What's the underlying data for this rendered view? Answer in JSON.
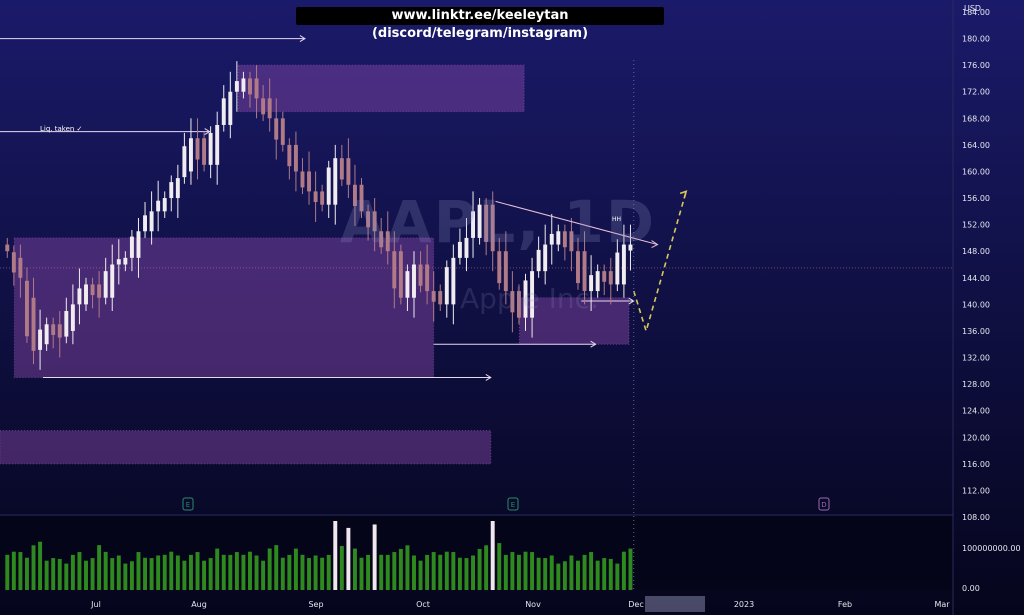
{
  "banner": "www.linktr.ee/keeleytan (discord/telegram/instagram)",
  "watermark": {
    "symbol": "AAPL, 1D",
    "company": "Apple Inc."
  },
  "currency": "USD",
  "annotations": {
    "liquidity": "Liq. taken ✓",
    "high_tag": "HH"
  },
  "events": [
    {
      "label": "E",
      "color": "#2a8a6a",
      "month_pos": "early Aug"
    },
    {
      "label": "E",
      "color": "#2a8a6a",
      "month_pos": "late Oct"
    },
    {
      "label": "D",
      "color": "#9a6ab0",
      "month_pos": "Feb"
    }
  ],
  "colors": {
    "bg_top": "#1a1a6a",
    "bg_bottom": "#05051c",
    "up": "#f0ecf0",
    "down": "#b07a86",
    "zone": "#8a4aa8",
    "vol_up": "#2e8a1e",
    "vol_down": "#2e8a1e",
    "projection": "#d8c85a"
  },
  "chart_data": {
    "type": "candlestick",
    "y_axis": {
      "min": 108,
      "max": 184,
      "step": 4,
      "ticks": [
        "184.00",
        "180.00",
        "176.00",
        "172.00",
        "168.00",
        "164.00",
        "160.00",
        "156.00",
        "152.00",
        "148.00",
        "144.00",
        "140.00",
        "136.00",
        "132.00",
        "128.00",
        "124.00",
        "120.00",
        "116.00",
        "112.00",
        "108.00"
      ]
    },
    "volume_axis": {
      "ticks": [
        "100000000.00",
        "0.00"
      ]
    },
    "x_axis": {
      "labels": [
        "Jul",
        "Aug",
        "Sep",
        "Oct",
        "Nov",
        "Dec",
        "2023",
        "Feb",
        "Mar"
      ]
    },
    "ohlc_anchors": [
      [
        149,
        151,
        145,
        148
      ],
      [
        147,
        149,
        141,
        144
      ],
      [
        141,
        143,
        131,
        133
      ],
      [
        134,
        138,
        132,
        137
      ],
      [
        137,
        140,
        133,
        135
      ],
      [
        136,
        141,
        135,
        140
      ],
      [
        140,
        144,
        139,
        143
      ],
      [
        143,
        146,
        139,
        141
      ],
      [
        141,
        147,
        140,
        146
      ],
      [
        146,
        149,
        144,
        147
      ],
      [
        147,
        152,
        146,
        151
      ],
      [
        151,
        155,
        149,
        154
      ],
      [
        154,
        158,
        152,
        156
      ],
      [
        156,
        160,
        155,
        159
      ],
      [
        160,
        166,
        158,
        165
      ],
      [
        165,
        167,
        159,
        161
      ],
      [
        161,
        168,
        160,
        167
      ],
      [
        167,
        173,
        166,
        172
      ],
      [
        172,
        176,
        170,
        174
      ],
      [
        174,
        175,
        169,
        171
      ],
      [
        171,
        172,
        165,
        168
      ],
      [
        168,
        169,
        162,
        164
      ],
      [
        164,
        166,
        158,
        160
      ],
      [
        160,
        162,
        155,
        157
      ],
      [
        157,
        158,
        153,
        155
      ],
      [
        155,
        163,
        154,
        162
      ],
      [
        162,
        164,
        157,
        158
      ],
      [
        158,
        159,
        151,
        154
      ],
      [
        154,
        158,
        150,
        151
      ],
      [
        151,
        152,
        146,
        148
      ],
      [
        148,
        149,
        139,
        141
      ],
      [
        141,
        147,
        140,
        146
      ],
      [
        146,
        148,
        141,
        142
      ],
      [
        142,
        143,
        136,
        140
      ],
      [
        140,
        148,
        138,
        147
      ],
      [
        147,
        152,
        144,
        150
      ],
      [
        150,
        158,
        149,
        155
      ],
      [
        155,
        156,
        146,
        148
      ],
      [
        148,
        149,
        140,
        142
      ],
      [
        142,
        143,
        136,
        138
      ],
      [
        138,
        146,
        137,
        145
      ],
      [
        145,
        151,
        144,
        149
      ],
      [
        149,
        152,
        147,
        151
      ],
      [
        151,
        152,
        146,
        148
      ],
      [
        148,
        149,
        141,
        142
      ],
      [
        142,
        147,
        141,
        145
      ],
      [
        145,
        146,
        140,
        143
      ],
      [
        143,
        151,
        142,
        149
      ]
    ],
    "volume_rel": [
      0.6,
      0.55,
      0.7,
      0.5,
      0.45,
      0.55,
      0.5,
      0.65,
      0.5,
      0.45,
      0.55,
      0.5,
      0.6,
      0.5,
      0.55,
      0.5,
      0.6,
      0.55,
      0.6,
      0.5,
      0.65,
      0.55,
      0.6,
      0.5,
      0.55,
      0.75,
      0.6,
      0.55,
      0.6,
      0.55,
      0.7,
      0.5,
      0.55,
      0.6,
      0.55,
      0.5,
      0.7,
      0.8,
      0.55,
      0.6,
      0.55,
      0.5,
      0.45,
      0.5,
      0.55,
      0.5,
      0.45,
      0.6
    ],
    "volume_spikes": [
      {
        "i": 25,
        "rel": 1.0
      },
      {
        "i": 26,
        "rel": 0.9
      },
      {
        "i": 28,
        "rel": 0.95
      },
      {
        "i": 37,
        "rel": 1.0
      }
    ],
    "zones": [
      {
        "name": "supply-top",
        "from": 0.25,
        "to": 0.55,
        "ylo": 169,
        "yhi": 176
      },
      {
        "name": "demand-big",
        "from": 0.015,
        "to": 0.455,
        "ylo": 129,
        "yhi": 150
      },
      {
        "name": "demand-mid",
        "from": 0.545,
        "to": 0.66,
        "ylo": 134,
        "yhi": 141
      },
      {
        "name": "demand-low",
        "from": 0.0,
        "to": 0.515,
        "ylo": 116,
        "yhi": 121
      }
    ],
    "levels": [
      {
        "price": 180,
        "from": 0.0,
        "to": 0.32
      },
      {
        "price": 166,
        "from": 0.0,
        "to": 0.22
      },
      {
        "price": 129,
        "from": 0.045,
        "to": 0.515
      },
      {
        "price": 134,
        "from": 0.455,
        "to": 0.625
      },
      {
        "price": 140.5,
        "from": 0.61,
        "to": 0.665
      }
    ],
    "trendline": {
      "from": {
        "x": 0.52,
        "y": 155.5
      },
      "to": {
        "x": 0.69,
        "y": 149
      }
    },
    "projection": [
      {
        "x": 0.665,
        "y": 142
      },
      {
        "x": 0.678,
        "y": 136
      },
      {
        "x": 0.72,
        "y": 157
      }
    ],
    "current_price_level": 145.5
  }
}
